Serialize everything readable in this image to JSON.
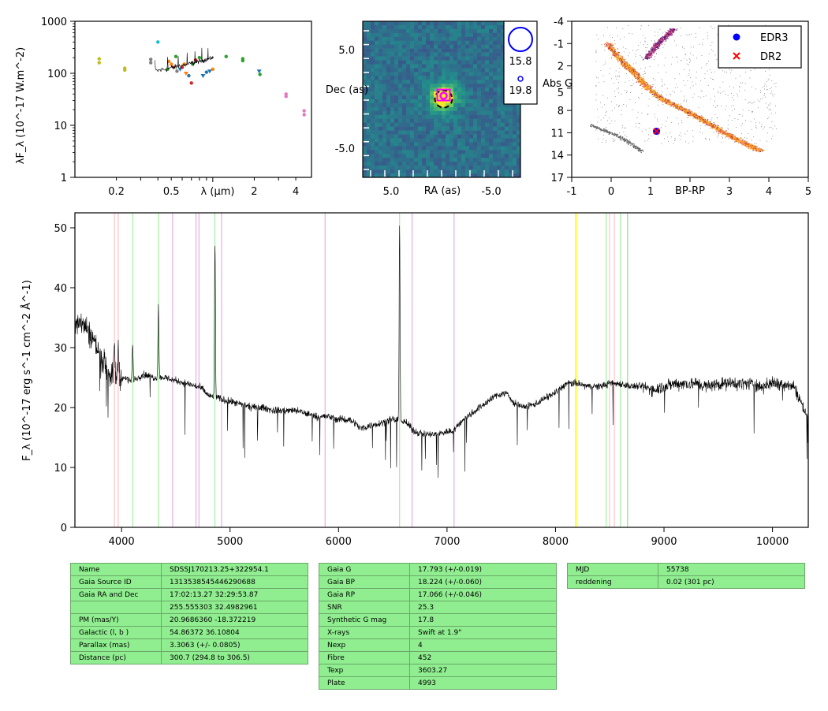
{
  "sed": {
    "ylabel": "λF_λ (10^-17 W.m^-2)",
    "xlabel": "λ (μm)",
    "yticks": [
      "1",
      "10",
      "100",
      "1000"
    ],
    "xticks": [
      "0.2",
      "0.5",
      "2",
      "4"
    ],
    "ylim": [
      1,
      1000
    ],
    "xlim": [
      0.1,
      5.2
    ],
    "points": [
      {
        "x": 0.15,
        "y": 160,
        "c": "#bcbd22"
      },
      {
        "x": 0.15,
        "y": 190,
        "c": "#bcbd22"
      },
      {
        "x": 0.23,
        "y": 115,
        "c": "#bcbd22"
      },
      {
        "x": 0.23,
        "y": 125,
        "c": "#bcbd22"
      },
      {
        "x": 0.355,
        "y": 160,
        "c": "#7f7f7f"
      },
      {
        "x": 0.355,
        "y": 185,
        "c": "#7f7f7f"
      },
      {
        "x": 0.4,
        "y": 400,
        "c": "#17becf"
      },
      {
        "x": 0.47,
        "y": 120,
        "c": "#2ca02c"
      },
      {
        "x": 0.48,
        "y": 170,
        "c": "#ff7f0e"
      },
      {
        "x": 0.5,
        "y": 150,
        "c": "#ff7f0e"
      },
      {
        "x": 0.54,
        "y": 210,
        "c": "#2ca02c"
      },
      {
        "x": 0.55,
        "y": 110,
        "c": "#7f7f7f"
      },
      {
        "x": 0.6,
        "y": 130,
        "c": "#d62728"
      },
      {
        "x": 0.62,
        "y": 150,
        "c": "#ff7f0e"
      },
      {
        "x": 0.67,
        "y": 90,
        "c": "#1f77b4"
      },
      {
        "x": 0.7,
        "y": 65,
        "c": "#d62728"
      },
      {
        "x": 0.75,
        "y": 180,
        "c": "#d62728"
      },
      {
        "x": 0.8,
        "y": 200,
        "c": "#2ca02c"
      },
      {
        "x": 0.9,
        "y": 105,
        "c": "#1f77b4"
      },
      {
        "x": 1.0,
        "y": 120,
        "c": "#ff7f0e"
      },
      {
        "x": 1.25,
        "y": 210,
        "c": "#2ca02c"
      },
      {
        "x": 1.65,
        "y": 190,
        "c": "#2ca02c"
      },
      {
        "x": 1.65,
        "y": 175,
        "c": "#2ca02c"
      },
      {
        "x": 2.17,
        "y": 110,
        "c": "#1f77b4"
      },
      {
        "x": 2.2,
        "y": 95,
        "c": "#2ca02c"
      },
      {
        "x": 3.4,
        "y": 40,
        "c": "#e377c2"
      },
      {
        "x": 3.4,
        "y": 36,
        "c": "#e377c2"
      },
      {
        "x": 4.6,
        "y": 19,
        "c": "#e377c2"
      },
      {
        "x": 4.6,
        "y": 16,
        "c": "#e377c2"
      }
    ]
  },
  "image": {
    "ylabel": "Dec (as)",
    "xlabel": "RA (as)",
    "xticks": [
      "5.0",
      "-5.0"
    ],
    "yticks": [
      "5.0",
      "-5.0"
    ],
    "legend": [
      "15.8",
      "19.8"
    ]
  },
  "cmd": {
    "xlabel": "BP-RP",
    "ylabel": "Abs G",
    "xticks": [
      "-1",
      "0",
      "1",
      "3",
      "4",
      "5"
    ],
    "yticks": [
      "-4",
      "-1",
      "2",
      "5",
      "8",
      "11",
      "14",
      "17"
    ],
    "xlim": [
      -1,
      5
    ],
    "ylim": [
      17,
      -4
    ],
    "legend": [
      "EDR3",
      "DR2"
    ],
    "star": {
      "bp_rp": 1.15,
      "abs_g": 10.8
    },
    "colors": {
      "edr3": "#0000ff",
      "dr2": "#ff0000"
    }
  },
  "spectrum": {
    "ylabel": "F_λ (10^-17 erg s^-1 cm^-2 Å^-1)",
    "xticks": [
      "4000",
      "5000",
      "6000",
      "7000",
      "8000",
      "9000",
      "10000"
    ],
    "yticks": [
      "0",
      "10",
      "20",
      "30",
      "40",
      "50"
    ],
    "xlim": [
      3570,
      10330
    ],
    "ylim": [
      0,
      52.5
    ],
    "continuum": [
      [
        3570,
        35
      ],
      [
        3650,
        34
      ],
      [
        3750,
        31
      ],
      [
        3850,
        27
      ],
      [
        3900,
        25.5
      ],
      [
        4000,
        25
      ],
      [
        4100,
        24.5
      ],
      [
        4200,
        25.5
      ],
      [
        4300,
        25
      ],
      [
        4400,
        25
      ],
      [
        4500,
        24.5
      ],
      [
        4600,
        24
      ],
      [
        4700,
        23.5
      ],
      [
        4750,
        23
      ],
      [
        4800,
        22
      ],
      [
        4900,
        21.5
      ],
      [
        5000,
        21
      ],
      [
        5100,
        20.5
      ],
      [
        5200,
        20
      ],
      [
        5300,
        20
      ],
      [
        5400,
        19.5
      ],
      [
        5500,
        19.5
      ],
      [
        5600,
        19.5
      ],
      [
        5700,
        19
      ],
      [
        5800,
        18.5
      ],
      [
        5900,
        18.5
      ],
      [
        6000,
        18
      ],
      [
        6100,
        18
      ],
      [
        6150,
        17.5
      ],
      [
        6200,
        16.5
      ],
      [
        6300,
        17
      ],
      [
        6400,
        17.5
      ],
      [
        6500,
        18
      ],
      [
        6620,
        17.5
      ],
      [
        6700,
        16
      ],
      [
        6800,
        15.5
      ],
      [
        6900,
        15.5
      ],
      [
        7000,
        16
      ],
      [
        7050,
        16
      ],
      [
        7150,
        18
      ],
      [
        7300,
        20
      ],
      [
        7450,
        22
      ],
      [
        7550,
        22.5
      ],
      [
        7600,
        21
      ],
      [
        7700,
        20
      ],
      [
        7800,
        20.5
      ],
      [
        7900,
        21.5
      ],
      [
        8000,
        22.5
      ],
      [
        8100,
        24
      ],
      [
        8200,
        24
      ],
      [
        8300,
        23.5
      ],
      [
        8400,
        23.5
      ],
      [
        8500,
        24
      ],
      [
        8600,
        24
      ],
      [
        8700,
        23.5
      ],
      [
        8800,
        23.5
      ],
      [
        8900,
        23
      ],
      [
        9000,
        23.5
      ],
      [
        9100,
        24
      ],
      [
        9200,
        24
      ],
      [
        9300,
        24
      ],
      [
        9400,
        23.5
      ],
      [
        9500,
        24
      ],
      [
        9600,
        24
      ],
      [
        9700,
        24
      ],
      [
        9800,
        24
      ],
      [
        9900,
        23.5
      ],
      [
        10000,
        24
      ],
      [
        10100,
        24
      ],
      [
        10200,
        23.5
      ],
      [
        10330,
        18
      ]
    ],
    "emission": [
      {
        "x": 3934,
        "h": 6
      },
      {
        "x": 3969,
        "h": 6
      },
      {
        "x": 4102,
        "h": 6
      },
      {
        "x": 4340,
        "h": 12
      },
      {
        "x": 4861,
        "h": 26
      },
      {
        "x": 6563,
        "h": 33
      }
    ],
    "lines": [
      {
        "x": 3934,
        "c": "#ffb6c1"
      },
      {
        "x": 3969,
        "c": "#ffb6c1"
      },
      {
        "x": 4102,
        "c": "#90ee90"
      },
      {
        "x": 4340,
        "c": "#90ee90"
      },
      {
        "x": 4471,
        "c": "#dda0dd"
      },
      {
        "x": 4686,
        "c": "#dda0dd"
      },
      {
        "x": 4713,
        "c": "#dda0dd"
      },
      {
        "x": 4861,
        "c": "#90ee90"
      },
      {
        "x": 4922,
        "c": "#dda0dd"
      },
      {
        "x": 5876,
        "c": "#dda0dd"
      },
      {
        "x": 6563,
        "c": "#90ee90"
      },
      {
        "x": 6678,
        "c": "#dda0dd"
      },
      {
        "x": 7065,
        "c": "#dda0dd"
      },
      {
        "x": 8183,
        "c": "#ffff00"
      },
      {
        "x": 8195,
        "c": "#ffff00"
      },
      {
        "x": 8467,
        "c": "#90ee90"
      },
      {
        "x": 8498,
        "c": "#ffb6c1"
      },
      {
        "x": 8542,
        "c": "#ffb6c1"
      },
      {
        "x": 8598,
        "c": "#90ee90"
      },
      {
        "x": 8662,
        "c": "#ffb6c1"
      },
      {
        "x": 8665,
        "c": "#90ee90"
      }
    ]
  },
  "table1": [
    [
      "Name",
      "SDSSJ170213.25+322954.1"
    ],
    [
      "Gaia Source ID",
      "1313538545446290688"
    ],
    [
      "Gaia RA and Dec",
      "17:02:13.27    32:29:53.87"
    ],
    [
      "",
      "255.555303    32.4982961"
    ],
    [
      "PM (mas/Y)",
      "20.9686360    -18.372219"
    ],
    [
      "Galactic (l, b )",
      "54.86372    36.10804"
    ],
    [
      "Parallax (mas)",
      "3.3063 (+/- 0.0805)"
    ],
    [
      "Distance (pc)",
      "300.7 (294.8 to 306.5)"
    ]
  ],
  "table2": [
    [
      "Gaia G",
      "17.793 (+/-0.019)"
    ],
    [
      "Gaia BP",
      "18.224 (+/-0.060)"
    ],
    [
      "Gaia RP",
      "17.066 (+/-0.046)"
    ],
    [
      "SNR",
      "25.3"
    ],
    [
      "Synthetic G mag",
      "17.8"
    ],
    [
      "X-rays",
      "Swift at 1.9\""
    ],
    [
      "Nexp",
      "4"
    ],
    [
      "Fibre",
      "452"
    ],
    [
      "Texp",
      "3603.27"
    ],
    [
      "Plate",
      "4993"
    ]
  ],
  "table3": [
    [
      "MJD",
      "55738"
    ],
    [
      "reddening",
      "0.02 (301 pc)"
    ]
  ]
}
